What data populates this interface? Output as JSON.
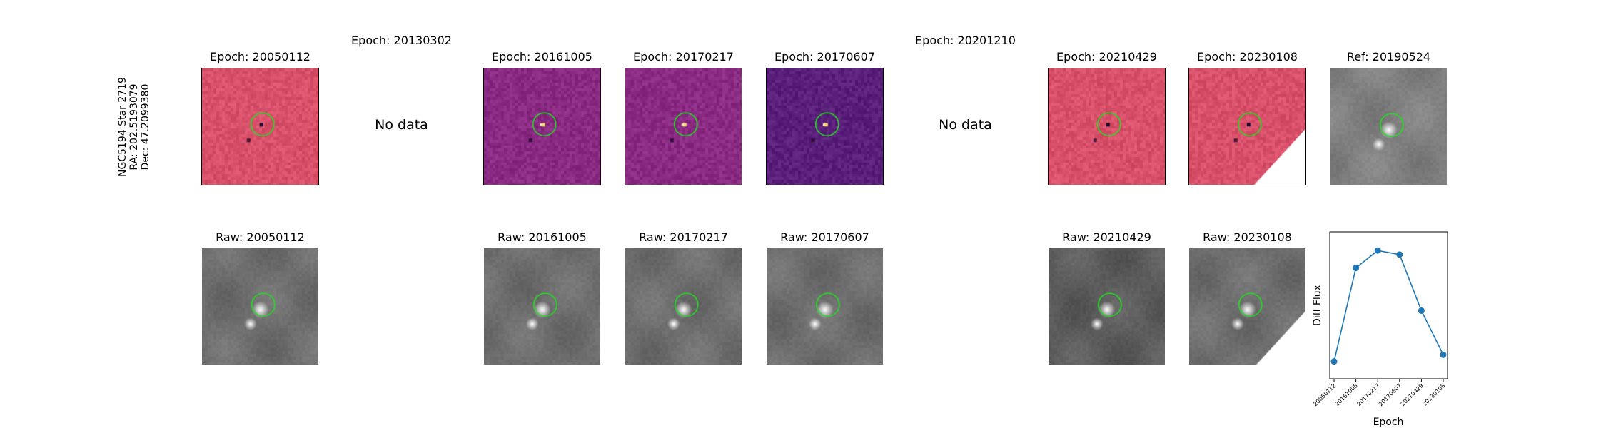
{
  "star_info": {
    "line1": "NGC5194 Star 2719",
    "line2": "RA: 202.5193079",
    "line3": "Dec: 47.2099380"
  },
  "top_row": [
    {
      "title": "Epoch: 20050112",
      "kind": "diff",
      "colormap": "magma-light"
    },
    {
      "title": "Epoch: 20130302",
      "kind": "nodata",
      "text": "No data"
    },
    {
      "title": "Epoch: 20161005",
      "kind": "diff",
      "colormap": "magma-mid"
    },
    {
      "title": "Epoch: 20170217",
      "kind": "diff",
      "colormap": "magma-mid"
    },
    {
      "title": "Epoch: 20170607",
      "kind": "diff",
      "colormap": "magma-dark"
    },
    {
      "title": "Epoch: 20201210",
      "kind": "nodata",
      "text": "No data"
    },
    {
      "title": "Epoch: 20210429",
      "kind": "diff",
      "colormap": "magma-light"
    },
    {
      "title": "Epoch: 20230108",
      "kind": "diff-edge",
      "colormap": "magma-light"
    },
    {
      "title": "Ref: 20190524",
      "kind": "ref",
      "colormap": "gray"
    }
  ],
  "bottom_row": [
    {
      "title": "Raw: 20050112",
      "kind": "raw"
    },
    {
      "title": "",
      "kind": "empty"
    },
    {
      "title": "Raw: 20161005",
      "kind": "raw"
    },
    {
      "title": "Raw: 20170217",
      "kind": "raw"
    },
    {
      "title": "Raw: 20170607",
      "kind": "raw"
    },
    {
      "title": "",
      "kind": "empty"
    },
    {
      "title": "Raw: 20210429",
      "kind": "raw-dark"
    },
    {
      "title": "Raw: 20230108",
      "kind": "raw-edge"
    }
  ],
  "colors": {
    "circle": "#22dd22",
    "series": "#1f77b4",
    "magma_light": "#d8506a",
    "magma_mid": "#8a2a82",
    "magma_dark": "#5a1f7a"
  },
  "chart_data": {
    "type": "line",
    "title": "",
    "xlabel": "Epoch",
    "ylabel": "Diff Flux",
    "x": [
      "20050112",
      "20161005",
      "20170217",
      "20170607",
      "20210429",
      "20230108"
    ],
    "series": [
      {
        "values": [
          0.03,
          0.73,
          0.86,
          0.83,
          0.41,
          0.08
        ]
      }
    ],
    "ylim": [
      -0.1,
      1.0
    ],
    "grid": false,
    "legend": "none"
  }
}
